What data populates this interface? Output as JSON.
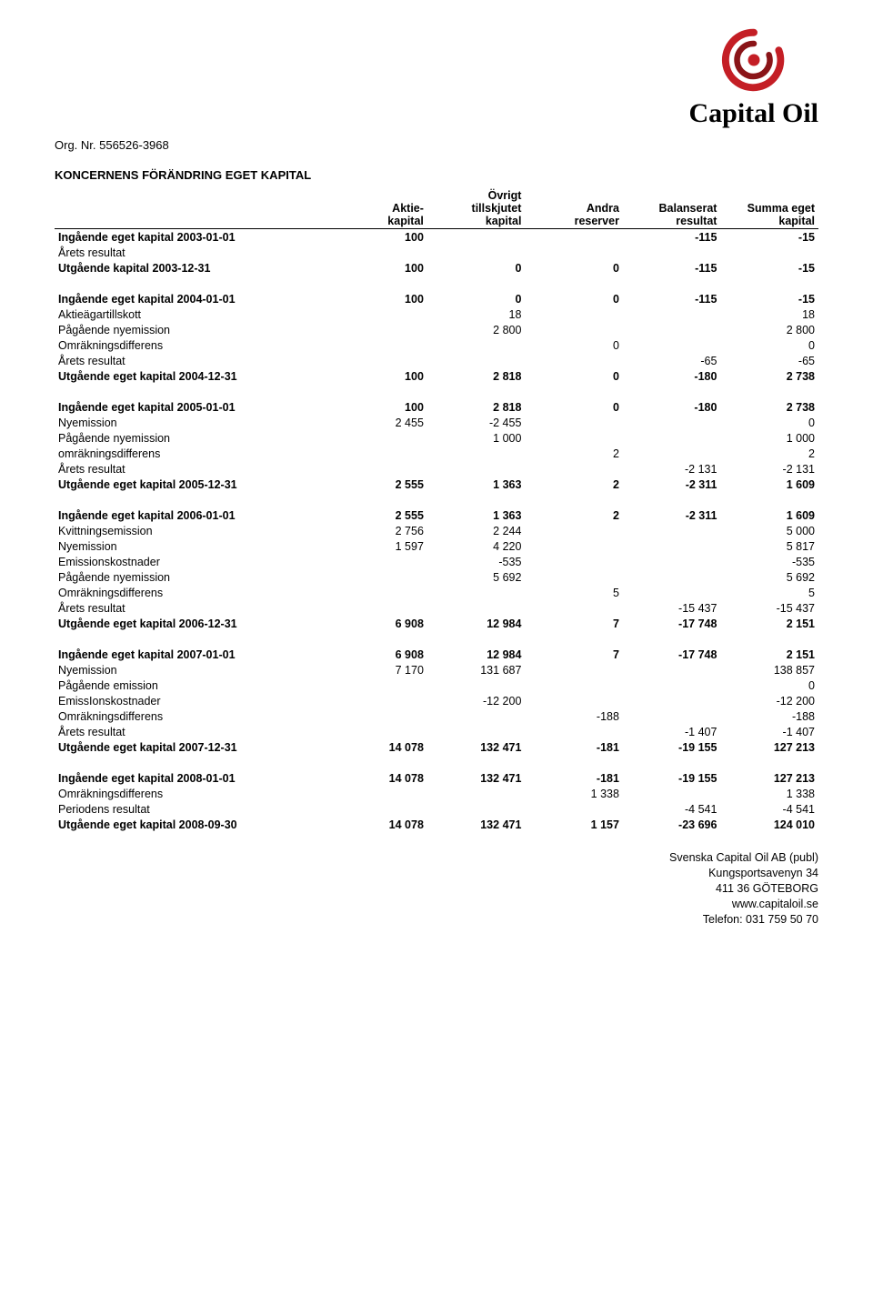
{
  "logo": {
    "text": "Capital Oil",
    "swirl_outer": "#c41e25",
    "swirl_inner": "#8a1418"
  },
  "org_line": "Org. Nr. 556526-3968",
  "title": "KONCERNENS FÖRÄNDRING EGET KAPITAL",
  "columns": [
    "Aktie-\nkapital",
    "Övrigt\ntillskjutet\nkapital",
    "Andra\nreserver",
    "Balanserat\nresultat",
    "Summa eget\nkapital"
  ],
  "rows": [
    {
      "bold": true,
      "label": "Ingående eget kapital 2003-01-01",
      "c": [
        "100",
        "",
        "",
        "-115",
        "-15"
      ]
    },
    {
      "label": "Årets resultat",
      "c": [
        "",
        "",
        "",
        "",
        ""
      ]
    },
    {
      "bold": true,
      "label": "Utgående kapital 2003-12-31",
      "c": [
        "100",
        "0",
        "0",
        "-115",
        "-15"
      ]
    },
    {
      "spacer": true
    },
    {
      "bold": true,
      "label": "Ingående eget kapital 2004-01-01",
      "c": [
        "100",
        "0",
        "0",
        "-115",
        "-15"
      ]
    },
    {
      "label": "Aktieägartillskott",
      "c": [
        "",
        "18",
        "",
        "",
        "18"
      ]
    },
    {
      "label": "Pågående nyemission",
      "c": [
        "",
        "2 800",
        "",
        "",
        "2 800"
      ]
    },
    {
      "label": "Omräkningsdifferens",
      "c": [
        "",
        "",
        "0",
        "",
        "0"
      ]
    },
    {
      "label": "Årets resultat",
      "c": [
        "",
        "",
        "",
        "-65",
        "-65"
      ]
    },
    {
      "bold": true,
      "label": "Utgående eget kapital 2004-12-31",
      "c": [
        "100",
        "2 818",
        "0",
        "-180",
        "2 738"
      ]
    },
    {
      "spacer": true
    },
    {
      "bold": true,
      "label": "Ingående eget kapital 2005-01-01",
      "c": [
        "100",
        "2 818",
        "0",
        "-180",
        "2 738"
      ]
    },
    {
      "label": "Nyemission",
      "c": [
        "2 455",
        "-2 455",
        "",
        "",
        "0"
      ]
    },
    {
      "label": "Pågående nyemission",
      "c": [
        "",
        "1 000",
        "",
        "",
        "1 000"
      ]
    },
    {
      "label": "omräkningsdifferens",
      "c": [
        "",
        "",
        "2",
        "",
        "2"
      ]
    },
    {
      "label": "Årets resultat",
      "c": [
        "",
        "",
        "",
        "-2 131",
        "-2 131"
      ]
    },
    {
      "bold": true,
      "label": "Utgående eget kapital 2005-12-31",
      "c": [
        "2 555",
        "1 363",
        "2",
        "-2 311",
        "1 609"
      ]
    },
    {
      "spacer": true
    },
    {
      "bold": true,
      "label": "Ingående eget kapital 2006-01-01",
      "c": [
        "2 555",
        "1 363",
        "2",
        "-2 311",
        "1 609"
      ]
    },
    {
      "label": "Kvittningsemission",
      "c": [
        "2 756",
        "2 244",
        "",
        "",
        "5 000"
      ]
    },
    {
      "label": "Nyemission",
      "c": [
        "1 597",
        "4 220",
        "",
        "",
        "5 817"
      ]
    },
    {
      "label": "Emissionskostnader",
      "c": [
        "",
        "-535",
        "",
        "",
        "-535"
      ]
    },
    {
      "label": "Pågående nyemission",
      "c": [
        "",
        "5 692",
        "",
        "",
        "5 692"
      ]
    },
    {
      "label": "Omräkningsdifferens",
      "c": [
        "",
        "",
        "5",
        "",
        "5"
      ]
    },
    {
      "label": "Årets resultat",
      "c": [
        "",
        "",
        "",
        "-15 437",
        "-15 437"
      ]
    },
    {
      "bold": true,
      "label": "Utgående eget kapital 2006-12-31",
      "c": [
        "6 908",
        "12 984",
        "7",
        "-17 748",
        "2 151"
      ]
    },
    {
      "spacer": true
    },
    {
      "bold": true,
      "label": "Ingående eget kapital 2007-01-01",
      "c": [
        "6 908",
        "12 984",
        "7",
        "-17 748",
        "2 151"
      ]
    },
    {
      "label": "Nyemission",
      "c": [
        "7 170",
        "131 687",
        "",
        "",
        "138 857"
      ]
    },
    {
      "label": "Pågående emission",
      "c": [
        "",
        "",
        "",
        "",
        "0"
      ]
    },
    {
      "label": "EmissIonskostnader",
      "c": [
        "",
        "-12 200",
        "",
        "",
        "-12 200"
      ]
    },
    {
      "label": "Omräkningsdifferens",
      "c": [
        "",
        "",
        "-188",
        "",
        "-188"
      ]
    },
    {
      "label": "Årets resultat",
      "c": [
        "",
        "",
        "",
        "-1 407",
        "-1 407"
      ]
    },
    {
      "bold": true,
      "label": "Utgående eget kapital 2007-12-31",
      "c": [
        "14 078",
        "132 471",
        "-181",
        "-19 155",
        "127 213"
      ]
    },
    {
      "spacer": true
    },
    {
      "bold": true,
      "label": "Ingående eget kapital 2008-01-01",
      "c": [
        "14 078",
        "132 471",
        "-181",
        "-19 155",
        "127 213"
      ]
    },
    {
      "label": "Omräkningsdifferens",
      "c": [
        "",
        "",
        "1 338",
        "",
        "1 338"
      ]
    },
    {
      "label": "Periodens resultat",
      "c": [
        "",
        "",
        "",
        "-4 541",
        "-4 541"
      ]
    },
    {
      "bold": true,
      "label": "Utgående eget kapital 2008-09-30",
      "c": [
        "14 078",
        "132 471",
        "1 157",
        "-23 696",
        "124 010"
      ]
    }
  ],
  "footer": {
    "company": "Svenska Capital Oil AB (publ)",
    "addr1": "Kungsportsavenyn 34",
    "addr2": "411 36  GÖTEBORG",
    "web": "www.capitaloil.se",
    "tel": "Telefon: 031 759 50 70"
  }
}
